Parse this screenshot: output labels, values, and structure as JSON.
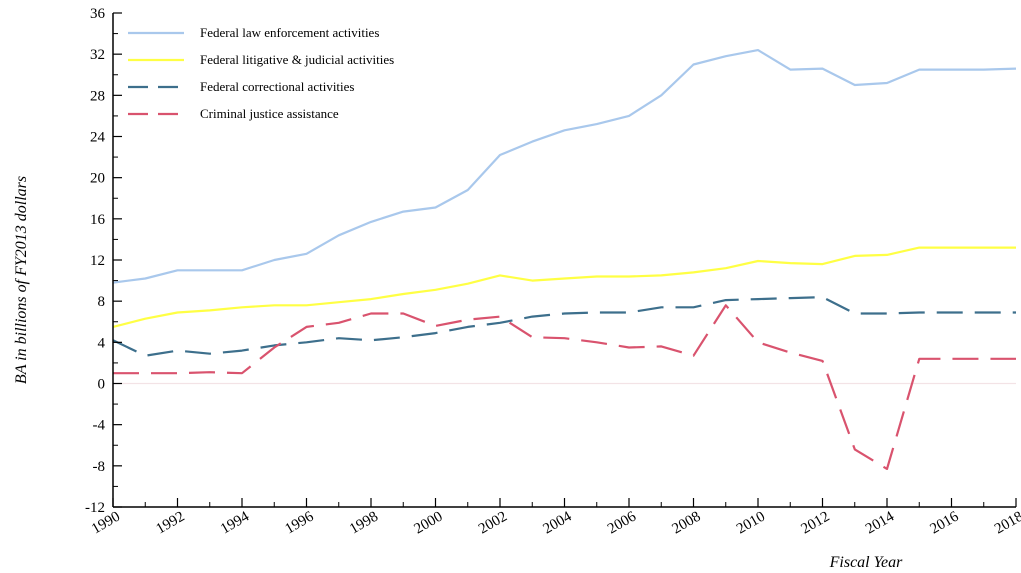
{
  "chart_data": {
    "type": "line",
    "title": "",
    "xlabel": "Fiscal Year",
    "ylabel": "BA in billions of FY2013 dollars",
    "x": [
      1990,
      1991,
      1992,
      1993,
      1994,
      1995,
      1996,
      1997,
      1998,
      1999,
      2000,
      2001,
      2002,
      2003,
      2004,
      2005,
      2006,
      2007,
      2008,
      2009,
      2010,
      2011,
      2012,
      2013,
      2014,
      2015,
      2016,
      2017,
      2018
    ],
    "xlim": [
      1990,
      2018
    ],
    "ylim": [
      -12,
      36
    ],
    "x_ticks": [
      1990,
      1992,
      1994,
      1996,
      1998,
      2000,
      2002,
      2004,
      2006,
      2008,
      2010,
      2012,
      2014,
      2016,
      2018
    ],
    "y_ticks": [
      -12,
      -8,
      -4,
      0,
      4,
      8,
      12,
      16,
      20,
      24,
      28,
      32,
      36
    ],
    "grid": false,
    "legend_position": "top-left",
    "series": [
      {
        "name": "Federal law enforcement activities",
        "color": "#a9c8ec",
        "dash": "solid",
        "values": [
          9.8,
          10.2,
          11.0,
          11.0,
          11.0,
          12.0,
          12.6,
          14.4,
          15.7,
          16.7,
          17.1,
          18.8,
          22.2,
          23.5,
          24.6,
          25.2,
          26.0,
          28.0,
          31.0,
          31.8,
          32.4,
          30.5,
          30.6,
          29.0,
          29.2,
          30.5,
          30.5,
          30.5,
          30.6
        ]
      },
      {
        "name": "Federal litigative & judicial activities",
        "color": "#ffff44",
        "dash": "solid",
        "values": [
          5.5,
          6.3,
          6.9,
          7.1,
          7.4,
          7.6,
          7.6,
          7.9,
          8.2,
          8.7,
          9.1,
          9.7,
          10.5,
          10.0,
          10.2,
          10.4,
          10.4,
          10.5,
          10.8,
          11.2,
          11.9,
          11.7,
          11.6,
          12.4,
          12.5,
          13.2,
          13.2,
          13.2,
          13.2
        ]
      },
      {
        "name": "Federal correctional activities",
        "color": "#3d6f8c",
        "dash": "long-dash",
        "values": [
          4.2,
          2.7,
          3.2,
          2.9,
          3.2,
          3.7,
          4.0,
          4.4,
          4.2,
          4.5,
          4.9,
          5.5,
          5.9,
          6.5,
          6.8,
          6.9,
          6.9,
          7.4,
          7.4,
          8.1,
          8.2,
          8.3,
          8.4,
          6.8,
          6.8,
          6.9,
          6.9,
          6.9,
          6.9
        ]
      },
      {
        "name": "Criminal justice assistance",
        "color": "#d9536e",
        "dash": "long-dash",
        "values": [
          1.0,
          1.0,
          1.0,
          1.1,
          1.0,
          3.5,
          5.5,
          5.9,
          6.8,
          6.8,
          5.6,
          6.2,
          6.5,
          4.5,
          4.4,
          4.0,
          3.5,
          3.6,
          2.7,
          7.6,
          4.0,
          3.0,
          2.2,
          -6.4,
          -8.3,
          2.4,
          2.4,
          2.4,
          2.4
        ]
      }
    ]
  }
}
